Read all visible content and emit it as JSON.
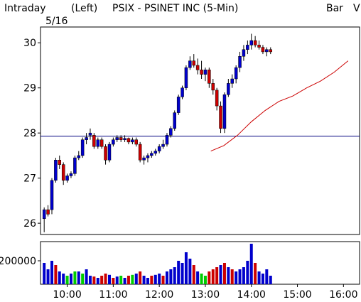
{
  "header": {
    "mode": "Intraday",
    "date": "5/16",
    "axis_side": "(Left)",
    "title": "PSIX - PSINET INC  (5-Min)",
    "chart_style": "Bar",
    "indicator": "V"
  },
  "colors": {
    "up": "#0000cc",
    "down": "#cc0000",
    "neutral": "#00cc00",
    "ma": "#cc0000",
    "ref_line": "#000080",
    "frame": "#000000"
  },
  "chart_data": [
    {
      "type": "candlestick",
      "title": "PSIX - PSINET INC  (5-Min)",
      "ylim": [
        25.75,
        30.35
      ],
      "y_ticks": [
        "26",
        "27",
        "28",
        "29",
        "30"
      ],
      "x_ticks": [
        "10:00",
        "11:00",
        "12:00",
        "13:00",
        "14:00",
        "15:00",
        "16:00"
      ],
      "reference_line": 27.93,
      "moving_average": [
        [
          13.12,
          27.6
        ],
        [
          13.4,
          27.72
        ],
        [
          13.7,
          27.95
        ],
        [
          14.0,
          28.25
        ],
        [
          14.3,
          28.5
        ],
        [
          14.6,
          28.7
        ],
        [
          14.9,
          28.82
        ],
        [
          15.2,
          29.0
        ],
        [
          15.5,
          29.15
        ],
        [
          15.8,
          29.35
        ],
        [
          16.1,
          29.6
        ]
      ],
      "ohlc": [
        [
          9.5,
          26.1,
          26.35,
          25.8,
          26.3
        ],
        [
          9.583,
          26.3,
          26.4,
          26.15,
          26.2
        ],
        [
          9.667,
          26.3,
          27.0,
          26.2,
          26.95
        ],
        [
          9.75,
          26.95,
          27.45,
          26.9,
          27.4
        ],
        [
          9.833,
          27.4,
          27.5,
          27.2,
          27.3
        ],
        [
          9.917,
          27.3,
          27.35,
          26.85,
          26.95
        ],
        [
          10.0,
          26.95,
          27.1,
          26.9,
          27.05
        ],
        [
          10.083,
          27.05,
          27.15,
          27.0,
          27.1
        ],
        [
          10.167,
          27.1,
          27.5,
          27.05,
          27.45
        ],
        [
          10.25,
          27.45,
          27.6,
          27.4,
          27.5
        ],
        [
          10.333,
          27.5,
          27.9,
          27.45,
          27.85
        ],
        [
          10.417,
          27.85,
          28.0,
          27.75,
          27.9
        ],
        [
          10.5,
          27.95,
          28.1,
          27.85,
          28.0
        ],
        [
          10.583,
          27.95,
          28.0,
          27.65,
          27.7
        ],
        [
          10.667,
          27.7,
          27.9,
          27.65,
          27.85
        ],
        [
          10.75,
          27.85,
          27.9,
          27.65,
          27.7
        ],
        [
          10.833,
          27.7,
          27.75,
          27.3,
          27.4
        ],
        [
          10.917,
          27.4,
          27.8,
          27.35,
          27.75
        ],
        [
          11.0,
          27.75,
          27.9,
          27.7,
          27.85
        ],
        [
          11.083,
          27.85,
          27.95,
          27.8,
          27.9
        ],
        [
          11.167,
          27.9,
          27.95,
          27.8,
          27.85
        ],
        [
          11.25,
          27.85,
          27.95,
          27.8,
          27.88
        ],
        [
          11.333,
          27.88,
          27.9,
          27.75,
          27.8
        ],
        [
          11.417,
          27.8,
          27.9,
          27.75,
          27.85
        ],
        [
          11.5,
          27.85,
          27.9,
          27.7,
          27.75
        ],
        [
          11.583,
          27.75,
          27.8,
          27.35,
          27.4
        ],
        [
          11.667,
          27.4,
          27.5,
          27.3,
          27.45
        ],
        [
          11.75,
          27.45,
          27.55,
          27.35,
          27.5
        ],
        [
          11.833,
          27.5,
          27.6,
          27.45,
          27.55
        ],
        [
          11.917,
          27.55,
          27.65,
          27.5,
          27.6
        ],
        [
          12.0,
          27.6,
          27.75,
          27.55,
          27.7
        ],
        [
          12.083,
          27.7,
          27.85,
          27.65,
          27.75
        ],
        [
          12.167,
          27.75,
          28.0,
          27.7,
          27.95
        ],
        [
          12.25,
          27.95,
          28.15,
          27.9,
          28.1
        ],
        [
          12.333,
          28.1,
          28.5,
          28.05,
          28.45
        ],
        [
          12.417,
          28.45,
          28.85,
          28.4,
          28.8
        ],
        [
          12.5,
          28.8,
          29.05,
          28.75,
          29.0
        ],
        [
          12.583,
          29.0,
          29.5,
          28.95,
          29.45
        ],
        [
          12.667,
          29.45,
          29.7,
          29.4,
          29.6
        ],
        [
          12.75,
          29.6,
          29.75,
          29.45,
          29.5
        ],
        [
          12.833,
          29.5,
          29.65,
          29.3,
          29.4
        ],
        [
          12.917,
          29.4,
          29.6,
          29.2,
          29.3
        ],
        [
          13.0,
          29.3,
          29.45,
          29.15,
          29.4
        ],
        [
          13.083,
          29.4,
          29.45,
          29.0,
          29.1
        ],
        [
          13.167,
          29.1,
          29.2,
          28.85,
          28.95
        ],
        [
          13.25,
          28.95,
          29.0,
          28.5,
          28.6
        ],
        [
          13.333,
          28.6,
          28.7,
          28.0,
          28.1
        ],
        [
          13.417,
          28.1,
          28.9,
          28.0,
          28.85
        ],
        [
          13.5,
          28.85,
          29.2,
          28.8,
          29.1
        ],
        [
          13.583,
          29.1,
          29.3,
          29.0,
          29.2
        ],
        [
          13.667,
          29.2,
          29.5,
          29.1,
          29.45
        ],
        [
          13.75,
          29.45,
          29.8,
          29.35,
          29.7
        ],
        [
          13.833,
          29.7,
          29.95,
          29.6,
          29.85
        ],
        [
          13.917,
          29.85,
          30.05,
          29.75,
          29.95
        ],
        [
          14.0,
          29.95,
          30.2,
          29.85,
          30.05
        ],
        [
          14.083,
          30.05,
          30.15,
          29.9,
          29.95
        ],
        [
          14.167,
          29.95,
          30.05,
          29.85,
          29.9
        ],
        [
          14.25,
          29.9,
          29.95,
          29.75,
          29.8
        ],
        [
          14.333,
          29.8,
          29.9,
          29.7,
          29.85
        ],
        [
          14.417,
          29.85,
          29.9,
          29.75,
          29.8
        ]
      ],
      "volume_ylabel": "200000",
      "volume": [
        [
          9.5,
          0.5,
          "up"
        ],
        [
          9.583,
          0.35,
          "up"
        ],
        [
          9.667,
          0.55,
          "up"
        ],
        [
          9.75,
          0.45,
          "down"
        ],
        [
          9.833,
          0.3,
          "up"
        ],
        [
          9.917,
          0.25,
          "up"
        ],
        [
          10.0,
          0.2,
          "neutral"
        ],
        [
          10.083,
          0.25,
          "up"
        ],
        [
          10.167,
          0.3,
          "neutral"
        ],
        [
          10.25,
          0.3,
          "up"
        ],
        [
          10.333,
          0.25,
          "neutral"
        ],
        [
          10.417,
          0.35,
          "up"
        ],
        [
          10.5,
          0.2,
          "up"
        ],
        [
          10.583,
          0.18,
          "down"
        ],
        [
          10.667,
          0.15,
          "up"
        ],
        [
          10.75,
          0.2,
          "down"
        ],
        [
          10.833,
          0.25,
          "down"
        ],
        [
          10.917,
          0.22,
          "up"
        ],
        [
          11.0,
          0.15,
          "down"
        ],
        [
          11.083,
          0.18,
          "up"
        ],
        [
          11.167,
          0.2,
          "neutral"
        ],
        [
          11.25,
          0.15,
          "up"
        ],
        [
          11.333,
          0.2,
          "down"
        ],
        [
          11.417,
          0.22,
          "neutral"
        ],
        [
          11.5,
          0.25,
          "up"
        ],
        [
          11.583,
          0.3,
          "down"
        ],
        [
          11.667,
          0.2,
          "up"
        ],
        [
          11.75,
          0.15,
          "up"
        ],
        [
          11.833,
          0.2,
          "down"
        ],
        [
          11.917,
          0.22,
          "up"
        ],
        [
          12.0,
          0.25,
          "up"
        ],
        [
          12.083,
          0.2,
          "down"
        ],
        [
          12.167,
          0.3,
          "up"
        ],
        [
          12.25,
          0.35,
          "up"
        ],
        [
          12.333,
          0.4,
          "up"
        ],
        [
          12.417,
          0.55,
          "up"
        ],
        [
          12.5,
          0.5,
          "up"
        ],
        [
          12.583,
          0.75,
          "up"
        ],
        [
          12.667,
          0.6,
          "up"
        ],
        [
          12.75,
          0.45,
          "down"
        ],
        [
          12.833,
          0.3,
          "up"
        ],
        [
          12.917,
          0.25,
          "neutral"
        ],
        [
          13.0,
          0.2,
          "neutral"
        ],
        [
          13.083,
          0.3,
          "down"
        ],
        [
          13.167,
          0.35,
          "down"
        ],
        [
          13.25,
          0.4,
          "down"
        ],
        [
          13.333,
          0.45,
          "up"
        ],
        [
          13.417,
          0.5,
          "down"
        ],
        [
          13.5,
          0.4,
          "up"
        ],
        [
          13.583,
          0.35,
          "down"
        ],
        [
          13.667,
          0.3,
          "up"
        ],
        [
          13.75,
          0.35,
          "up"
        ],
        [
          13.833,
          0.4,
          "up"
        ],
        [
          13.917,
          0.55,
          "up"
        ],
        [
          14.0,
          0.95,
          "up"
        ],
        [
          14.083,
          0.5,
          "down"
        ],
        [
          14.167,
          0.3,
          "up"
        ],
        [
          14.25,
          0.25,
          "up"
        ],
        [
          14.333,
          0.35,
          "up"
        ],
        [
          14.417,
          0.2,
          "up"
        ]
      ]
    }
  ]
}
